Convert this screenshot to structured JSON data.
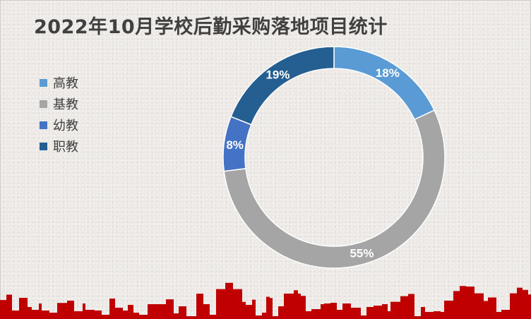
{
  "title": "2022年10月学校后勤采购落地项目统计",
  "legend": [
    {
      "label": "高教",
      "color": "#5b9bd5"
    },
    {
      "label": "基教",
      "color": "#a5a5a5"
    },
    {
      "label": "幼教",
      "color": "#4472c4"
    },
    {
      "label": "职教",
      "color": "#255e91"
    }
  ],
  "chart_data": {
    "type": "pie",
    "style": "donut",
    "title": "2022年10月学校后勤采购落地项目统计",
    "legend_position": "left",
    "slices": [
      {
        "label": "高教",
        "value": 18,
        "display": "18%",
        "color": "#5b9bd5"
      },
      {
        "label": "基教",
        "value": 55,
        "display": "55%",
        "color": "#a5a5a5"
      },
      {
        "label": "幼教",
        "value": 8,
        "display": "8%",
        "color": "#4472c4"
      },
      {
        "label": "职教",
        "value": 19,
        "display": "19%",
        "color": "#255e91"
      }
    ]
  },
  "decoration": {
    "skyline_color": "#c00000",
    "skyline_icon": "city-skyline-icon"
  }
}
